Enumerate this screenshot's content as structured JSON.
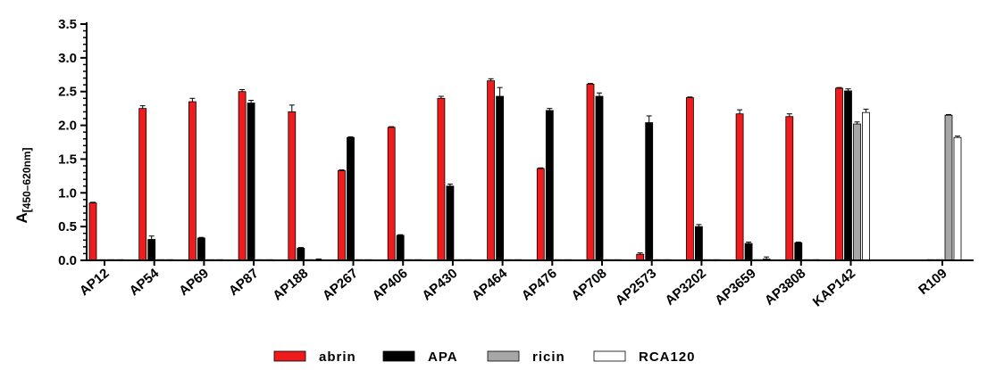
{
  "chart_data": {
    "type": "bar",
    "categories": [
      "AP12",
      "AP54",
      "AP69",
      "AP87",
      "AP188",
      "AP267",
      "AP406",
      "AP430",
      "AP464",
      "AP476",
      "AP708",
      "AP2573",
      "AP3202",
      "AP3659",
      "AP3808",
      "KAP142",
      "R109"
    ],
    "series": [
      {
        "name": "abrin",
        "color": "#ee1c1c",
        "values": [
          0.85,
          2.25,
          2.35,
          2.5,
          2.2,
          1.33,
          1.97,
          2.4,
          2.66,
          1.36,
          2.61,
          0.09,
          2.41,
          2.17,
          2.13,
          2.55,
          0.01
        ],
        "errors": [
          0.01,
          0.04,
          0.05,
          0.03,
          0.1,
          0.01,
          0.01,
          0.03,
          0.03,
          0.01,
          0.01,
          0.02,
          0.01,
          0.06,
          0.04,
          0.01,
          0.0
        ]
      },
      {
        "name": "APA",
        "color": "#000000",
        "values": [
          0.01,
          0.31,
          0.33,
          2.33,
          0.18,
          1.82,
          0.37,
          1.1,
          2.43,
          2.22,
          2.43,
          2.04,
          0.5,
          0.25,
          0.26,
          2.51,
          0.01
        ],
        "errors": [
          0.0,
          0.05,
          0.01,
          0.04,
          0.01,
          0.01,
          0.01,
          0.03,
          0.13,
          0.03,
          0.05,
          0.1,
          0.03,
          0.02,
          0.01,
          0.03,
          0.0
        ]
      },
      {
        "name": "ricin",
        "color": "#a6a6a6",
        "values": [
          0.0,
          0.0,
          0.0,
          0.0,
          0.0,
          0.0,
          0.0,
          0.0,
          0.0,
          0.0,
          0.0,
          0.0,
          0.0,
          0.0,
          0.0,
          2.02,
          2.15
        ],
        "errors": [
          0,
          0,
          0,
          0,
          0,
          0,
          0,
          0,
          0,
          0,
          0,
          0,
          0,
          0,
          0,
          0.03,
          0.01
        ]
      },
      {
        "name": "RCA120",
        "color": "#ffffff",
        "values": [
          0.01,
          0.0,
          0.0,
          0.0,
          0.01,
          0.0,
          0.0,
          0.0,
          0.0,
          0.0,
          0.0,
          0.0,
          0.0,
          0.02,
          0.0,
          2.19,
          1.82
        ],
        "errors": [
          0,
          0,
          0,
          0,
          0.01,
          0,
          0,
          0,
          0,
          0,
          0,
          0,
          0,
          0.03,
          0,
          0.05,
          0.02
        ]
      }
    ],
    "ylabel": "A",
    "ylabel_subscript": "[450–620nm]",
    "ylim": [
      0,
      3.5
    ],
    "yticks": [
      "0.0",
      "0.5",
      "1.0",
      "1.5",
      "2.0",
      "2.5",
      "3.0",
      "3.5"
    ],
    "ytick_values": [
      0,
      0.5,
      1.0,
      1.5,
      2.0,
      2.5,
      3.0,
      3.5
    ],
    "legend_position": "bottom",
    "grid": false
  }
}
